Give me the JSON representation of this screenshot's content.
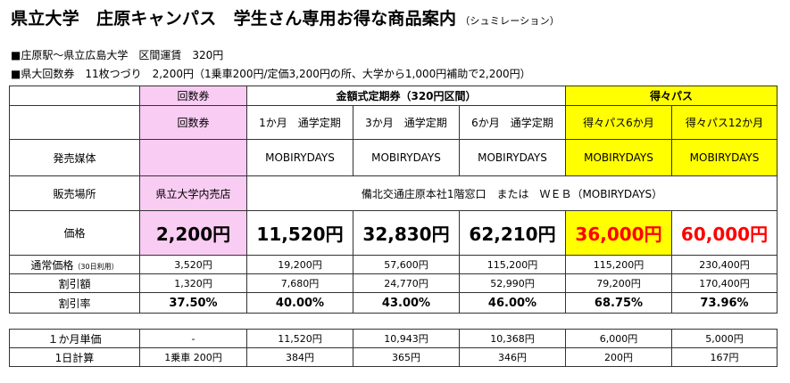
{
  "title": {
    "main": "県立大学　庄原キャンパス　学生さん専用お得な商品案内",
    "sub": "（シュミレーション）"
  },
  "info": {
    "line1": "■庄原駅～県立広島大学　区間運賃　320円",
    "line2": "■県大回数券　11枚つづり　2,200円（1乗車200円/定価3,200円の所、大学から1,000円補助で2,200円）"
  },
  "table": {
    "group_headers": {
      "coupon": "回数券",
      "commuter": "金額式定期券（320円区間）",
      "tokutoku": "得々パス"
    },
    "columns": [
      "回数券",
      "1か月　通学定期",
      "3か月　通学定期",
      "6か月　通学定期",
      "得々パス6か月",
      "得々パス12か月"
    ],
    "rows": {
      "media": {
        "label": "発売媒体",
        "values": [
          "",
          "MOBIRYDAYS",
          "MOBIRYDAYS",
          "MOBIRYDAYS",
          "MOBIRYDAYS",
          "MOBIRYDAYS"
        ]
      },
      "place": {
        "label": "販売場所",
        "coupon": "県立大学内売店",
        "others": "備北交通庄原本社1階窓口　または　ＷＥＢ（MOBIRYDAYS）"
      },
      "price": {
        "label": "価格",
        "values": [
          "2,200円",
          "11,520円",
          "32,830円",
          "62,210円",
          "36,000円",
          "60,000円"
        ]
      },
      "normal": {
        "label": "通常価格",
        "note": "（30日利用）",
        "values": [
          "3,520円",
          "19,200円",
          "57,600円",
          "115,200円",
          "115,200円",
          "230,400円"
        ]
      },
      "discount": {
        "label": "割引額",
        "values": [
          "1,320円",
          "7,680円",
          "24,770円",
          "52,990円",
          "79,200円",
          "170,400円"
        ]
      },
      "rate": {
        "label": "割引率",
        "values": [
          "37.50%",
          "40.00%",
          "43.00%",
          "46.00%",
          "68.75%",
          "73.96%"
        ]
      }
    }
  },
  "subtable": {
    "monthly": {
      "label": "１か月単価",
      "values": [
        "-",
        "11,520円",
        "10,943円",
        "10,368円",
        "6,000円",
        "5,000円"
      ]
    },
    "daily": {
      "label": "1日計算",
      "values": [
        "1乗車 200円",
        "384円",
        "365円",
        "346円",
        "200円",
        "167円"
      ]
    }
  },
  "colors": {
    "pink": "#f9ccf3",
    "yellow": "#ffff00",
    "red": "#ff0000"
  }
}
